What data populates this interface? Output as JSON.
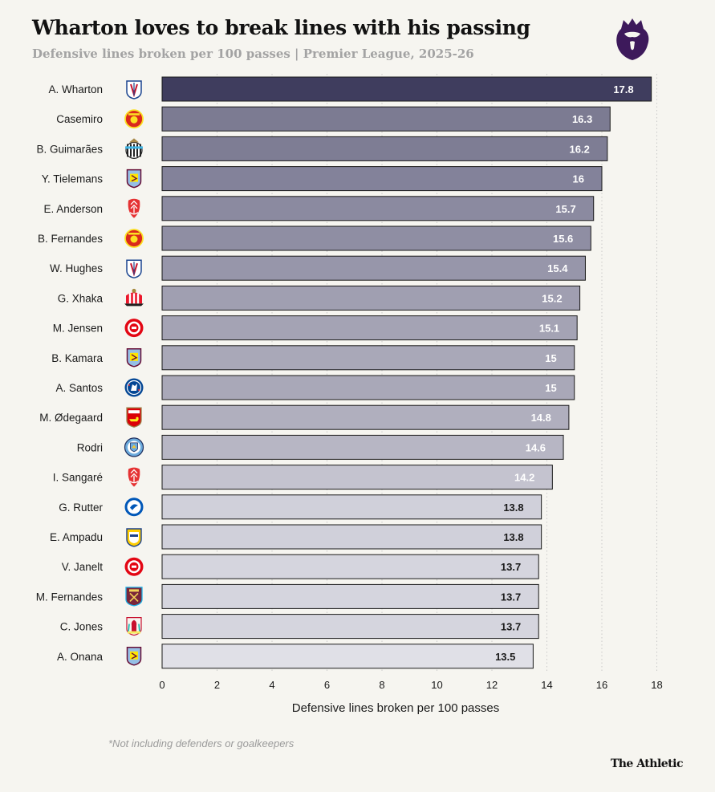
{
  "header": {
    "title": "Wharton loves to break lines with his passing",
    "subtitle": "Defensive lines broken per 100 passes | Premier League, 2025-26"
  },
  "footer": {
    "note": "*Not including defenders or goalkeepers",
    "brand": "The Athletic"
  },
  "colors": {
    "background": "#f6f5f0",
    "top_bar": "#3f3d5e",
    "gridline": "#c9c9c9",
    "bar_border": "#1a1a1a"
  },
  "chart_data": {
    "type": "bar",
    "orientation": "horizontal",
    "categories": [
      "A. Wharton",
      "Casemiro",
      "B. Guimarães",
      "Y. Tielemans",
      "E. Anderson",
      "B. Fernandes",
      "W. Hughes",
      "G. Xhaka",
      "M. Jensen",
      "B. Kamara",
      "A. Santos",
      "M. Ødegaard",
      "Rodri",
      "I. Sangaré",
      "G. Rutter",
      "E. Ampadu",
      "V. Janelt",
      "M. Fernandes",
      "C. Jones",
      "A. Onana"
    ],
    "values": [
      17.8,
      16.3,
      16.2,
      16,
      15.7,
      15.6,
      15.4,
      15.2,
      15.1,
      15,
      15,
      14.8,
      14.6,
      14.2,
      13.8,
      13.8,
      13.7,
      13.7,
      13.7,
      13.5
    ],
    "value_labels": [
      "17.8",
      "16.3",
      "16.2",
      "16",
      "15.7",
      "15.6",
      "15.4",
      "15.2",
      "15.1",
      "15",
      "15",
      "14.8",
      "14.6",
      "14.2",
      "13.8",
      "13.8",
      "13.7",
      "13.7",
      "13.7",
      "13.5"
    ],
    "club_icons": [
      "crystal-palace-icon",
      "man-utd-icon",
      "newcastle-icon",
      "aston-villa-icon",
      "nottm-forest-icon",
      "man-utd-icon",
      "crystal-palace-icon",
      "sunderland-icon",
      "brentford-icon",
      "aston-villa-icon",
      "chelsea-icon",
      "arsenal-icon",
      "man-city-icon",
      "nottm-forest-icon",
      "brighton-icon",
      "leeds-icon",
      "brentford-icon",
      "west-ham-icon",
      "liverpool-icon",
      "aston-villa-icon"
    ],
    "bar_colors": [
      "#3f3d5e",
      "#7c7b92",
      "#7e7d94",
      "#83829a",
      "#8b8aa0",
      "#8f8ea3",
      "#9796aa",
      "#a09fb1",
      "#a4a3b4",
      "#a9a8b8",
      "#a9a8b8",
      "#b0afbe",
      "#b7b6c4",
      "#c4c3cf",
      "#d0d0da",
      "#d0d0da",
      "#d5d5de",
      "#d5d5de",
      "#d5d5de",
      "#e0e0e7"
    ],
    "xticks": [
      "0",
      "2",
      "4",
      "6",
      "8",
      "10",
      "12",
      "14",
      "16",
      "18"
    ],
    "xlim": [
      0,
      18
    ],
    "xlabel": "Defensive lines broken per 100 passes",
    "ylabel": "",
    "grid": true
  }
}
